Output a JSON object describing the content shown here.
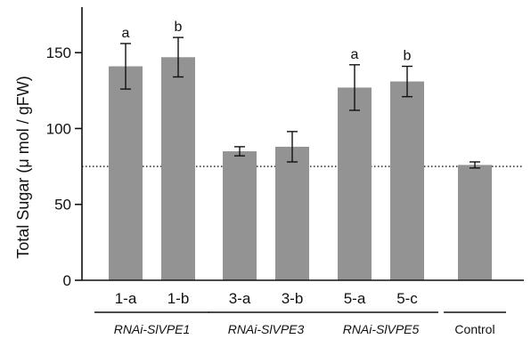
{
  "chart_data": {
    "type": "bar",
    "ylabel": "Total Sugar (μ mol / gFW)",
    "ylim": [
      0,
      180
    ],
    "yticks": [
      0,
      50,
      100,
      150
    ],
    "grid": false,
    "colors": {
      "bar": "#939393",
      "axis": "#111111",
      "error": "#111111",
      "reference_line": "#111111"
    },
    "categories": [
      "1-a",
      "1-b",
      "3-a",
      "3-b",
      "5-a",
      "5-c",
      ""
    ],
    "values": [
      141,
      147,
      85,
      88,
      127,
      131,
      76
    ],
    "errors": [
      15,
      13,
      3,
      10,
      15,
      10,
      2
    ],
    "significance": [
      "a",
      "b",
      "",
      "",
      "a",
      "b",
      ""
    ],
    "groups": [
      {
        "label": "RNAi-SlVPE1",
        "italic": true,
        "members": [
          0,
          1
        ]
      },
      {
        "label": "RNAi-SlVPE3",
        "italic": true,
        "members": [
          2,
          3
        ]
      },
      {
        "label": "RNAi-SlVPE5",
        "italic": true,
        "members": [
          4,
          5
        ]
      },
      {
        "label": "Control",
        "italic": false,
        "members": [
          6
        ]
      }
    ],
    "reference_line": {
      "value": 75,
      "style": "dotted"
    }
  }
}
